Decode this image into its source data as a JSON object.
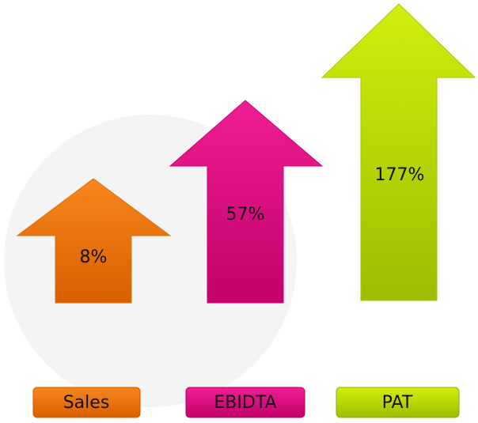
{
  "items": [
    {
      "name": "Sales",
      "label": "8%"
    },
    {
      "name": "EBIDTA",
      "label": "57%"
    },
    {
      "name": "PAT",
      "label": "177%"
    }
  ]
}
